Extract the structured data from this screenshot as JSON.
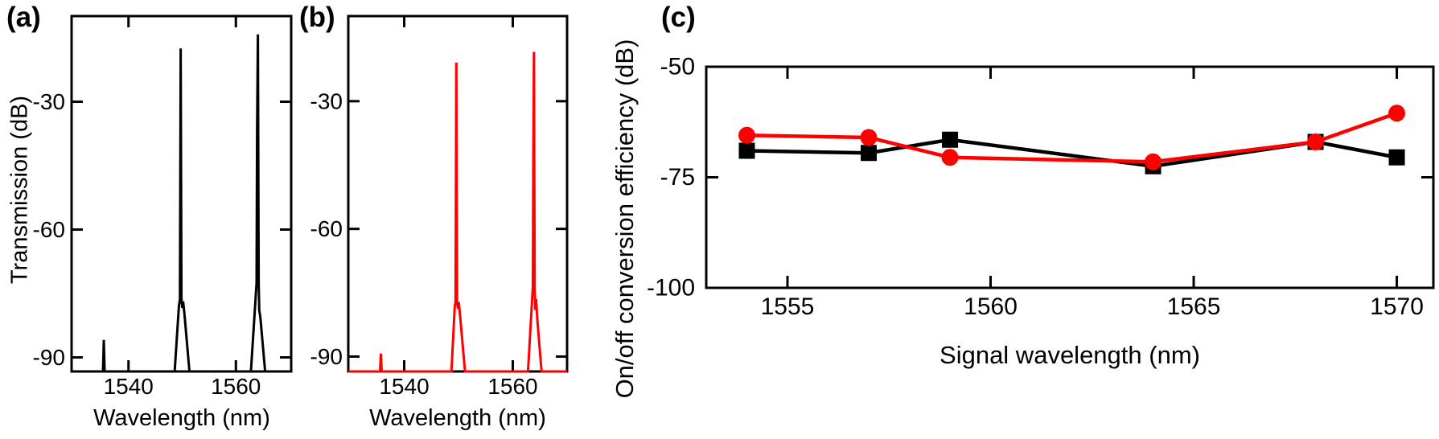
{
  "figure_caption_letters": [
    "(a)",
    "(b)",
    "(c)"
  ],
  "colors": {
    "black_series": "#000000",
    "red_series": "#ff0000",
    "background": "#ffffff"
  },
  "chart_data": [
    {
      "id": "a",
      "type": "line",
      "panel_label": "(a)",
      "xlabel": "Wavelength (nm)",
      "ylabel": "Transmission (dB)",
      "xlim": [
        1529.4,
        1570.3
      ],
      "ylim": [
        -93.3,
        -9.9
      ],
      "xticks": [
        1540,
        1560
      ],
      "yticks": [
        -30,
        -60,
        -90
      ],
      "grid": false,
      "legend_position": "none",
      "series": [
        {
          "name": "transmission-spectrum-black",
          "color": "#000000",
          "points": [
            [
              1529.4,
              -93.3
            ],
            [
              1535.25,
              -93.3
            ],
            [
              1535.4,
              -85.9
            ],
            [
              1535.55,
              -93.3
            ],
            [
              1548.6,
              -93.3
            ],
            [
              1549.4,
              -77.8
            ],
            [
              1549.58,
              -76.4
            ],
            [
              1549.72,
              -17.5
            ],
            [
              1549.86,
              -76.2
            ],
            [
              1550.02,
              -78.4
            ],
            [
              1550.18,
              -76.9
            ],
            [
              1550.45,
              -80.2
            ],
            [
              1551.35,
              -93.3
            ],
            [
              1562.8,
              -93.3
            ],
            [
              1563.85,
              -72.6
            ],
            [
              1563.95,
              -36.8
            ],
            [
              1564.1,
              -14.2
            ],
            [
              1564.25,
              -72.6
            ],
            [
              1564.35,
              -78.9
            ],
            [
              1564.55,
              -80.5
            ],
            [
              1565.45,
              -93.3
            ],
            [
              1570.3,
              -93.3
            ]
          ]
        }
      ]
    },
    {
      "id": "b",
      "type": "line",
      "panel_label": "(b)",
      "xlabel": "Wavelength (nm)",
      "ylabel": "",
      "xlim": [
        1529.7,
        1570.0
      ],
      "ylim": [
        -93.5,
        -10.0
      ],
      "xticks": [
        1540,
        1560
      ],
      "yticks": [
        -30,
        -60,
        -90
      ],
      "grid": false,
      "legend_position": "none",
      "series": [
        {
          "name": "transmission-spectrum-red",
          "color": "#ff0000",
          "points": [
            [
              1529.7,
              -93.5
            ],
            [
              1535.55,
              -93.5
            ],
            [
              1535.7,
              -89.3
            ],
            [
              1535.85,
              -93.5
            ],
            [
              1548.7,
              -93.5
            ],
            [
              1549.3,
              -78.5
            ],
            [
              1549.46,
              -77.0
            ],
            [
              1549.6,
              -20.9
            ],
            [
              1549.74,
              -76.8
            ],
            [
              1549.9,
              -78.8
            ],
            [
              1550.05,
              -77.2
            ],
            [
              1550.3,
              -80.5
            ],
            [
              1551.2,
              -93.5
            ],
            [
              1562.8,
              -93.5
            ],
            [
              1563.7,
              -73.5
            ],
            [
              1563.78,
              -44.0
            ],
            [
              1563.9,
              -18.4
            ],
            [
              1564.03,
              -73.5
            ],
            [
              1564.13,
              -79.0
            ],
            [
              1564.3,
              -76.5
            ],
            [
              1564.5,
              -81.0
            ],
            [
              1565.3,
              -93.5
            ],
            [
              1570.0,
              -93.5
            ]
          ]
        }
      ]
    },
    {
      "id": "c",
      "type": "scatter-line",
      "panel_label": "(c)",
      "xlabel": "Signal wavelength (nm)",
      "ylabel": "On/off conversion efficiency (dB)",
      "xlim": [
        1553.0,
        1570.9
      ],
      "ylim": [
        -100,
        -50
      ],
      "xticks": [
        1555,
        1560,
        1565,
        1570
      ],
      "yticks": [
        -50,
        -75,
        -100
      ],
      "grid": false,
      "legend_position": "none",
      "x_values": [
        1554,
        1557,
        1559,
        1564,
        1568,
        1570
      ],
      "series": [
        {
          "name": "conversion-efficiency-black-squares",
          "marker": "square",
          "color": "#000000",
          "x": [
            1554,
            1557,
            1559,
            1564,
            1568,
            1570
          ],
          "y": [
            -69,
            -69.5,
            -66.5,
            -72.5,
            -67,
            -70.5
          ]
        },
        {
          "name": "conversion-efficiency-red-circles",
          "marker": "circle",
          "color": "#ff0000",
          "x": [
            1554,
            1557,
            1559,
            1564,
            1568,
            1570
          ],
          "y": [
            -65.5,
            -66,
            -70.5,
            -71.5,
            -67,
            -60.5
          ]
        }
      ]
    }
  ]
}
